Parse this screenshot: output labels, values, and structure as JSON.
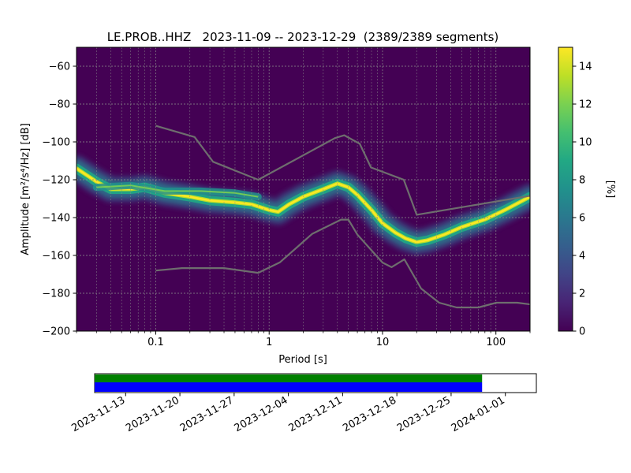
{
  "chart_data": [
    {
      "type": "heatmap",
      "title": "LE.PROB..HHZ   2023-11-09 -- 2023-12-29  (2389/2389 segments)",
      "xlabel": "Period [s]",
      "ylabel": "Amplitude [m²/s⁴/Hz] [dB]",
      "xscale": "log",
      "xlim": [
        0.02,
        200
      ],
      "ylim": [
        -200,
        -50
      ],
      "xticks": [
        {
          "value": 0.1,
          "label": "0.1"
        },
        {
          "value": 1,
          "label": "1"
        },
        {
          "value": 10,
          "label": "10"
        },
        {
          "value": 100,
          "label": "100"
        }
      ],
      "yticks": [
        -60,
        -80,
        -100,
        -120,
        -140,
        -160,
        -180,
        -200
      ],
      "ytick_labels": [
        "−60",
        "−80",
        "−100",
        "−120",
        "−140",
        "−160",
        "−180",
        "−200"
      ],
      "grid": true,
      "colormap": "viridis",
      "colorbar": {
        "label": "[%]",
        "range": [
          0,
          15
        ],
        "ticks": [
          0,
          2,
          4,
          6,
          8,
          10,
          12,
          14
        ],
        "tick_labels": [
          "0",
          "2",
          "4",
          "6",
          "8",
          "10",
          "12",
          "14"
        ]
      },
      "psd_mode_curve": {
        "period": [
          0.02,
          0.03,
          0.04,
          0.06,
          0.08,
          0.12,
          0.2,
          0.3,
          0.5,
          0.7,
          1.0,
          1.2,
          1.5,
          2,
          3,
          4,
          5,
          6,
          8,
          10,
          13,
          16,
          20,
          25,
          35,
          50,
          80,
          120,
          200
        ],
        "db": [
          -114,
          -121,
          -125,
          -125,
          -124,
          -127,
          -129,
          -131,
          -132,
          -133,
          -136,
          -137,
          -133,
          -129,
          -125,
          -122,
          -124,
          -128,
          -136,
          -143,
          -148,
          -151,
          -153,
          -152,
          -149,
          -145,
          -141,
          -136,
          -129
        ]
      },
      "secondary_branch": {
        "period": [
          0.03,
          0.06,
          0.12,
          0.25,
          0.5,
          0.8
        ],
        "db": [
          -124,
          -123,
          -126,
          -126,
          -127,
          -129
        ]
      },
      "noise_model_high": {
        "period": [
          0.1,
          0.22,
          0.32,
          0.8,
          3.8,
          4.6,
          6.3,
          7.9,
          15.4,
          20,
          354.8
        ],
        "db": [
          -91.5,
          -97.4,
          -110.5,
          -120,
          -98,
          -96.5,
          -101,
          -113.5,
          -120,
          -138.5,
          -126
        ]
      },
      "noise_model_low": {
        "period": [
          0.1,
          0.17,
          0.4,
          0.8,
          1.24,
          2.4,
          4.3,
          5,
          6,
          10,
          12,
          15.6,
          21.9,
          31.6,
          45,
          70,
          101,
          154,
          328
        ],
        "db": [
          -168,
          -166.7,
          -166.7,
          -169.2,
          -163.7,
          -148.6,
          -141.1,
          -141.1,
          -149,
          -163.8,
          -166.2,
          -162.1,
          -177.5,
          -185,
          -187.5,
          -187.5,
          -185,
          -185,
          -187.5
        ]
      }
    },
    {
      "type": "timeline",
      "ticks": [
        "2023-11-13",
        "2023-11-20",
        "2023-11-27",
        "2023-12-04",
        "2023-12-11",
        "2023-12-18",
        "2023-12-25",
        "2024-01-01"
      ],
      "start": "2023-11-09",
      "end": "2023-12-29",
      "bars": [
        {
          "color": "#008000"
        },
        {
          "color": "#0000ff"
        }
      ]
    }
  ]
}
